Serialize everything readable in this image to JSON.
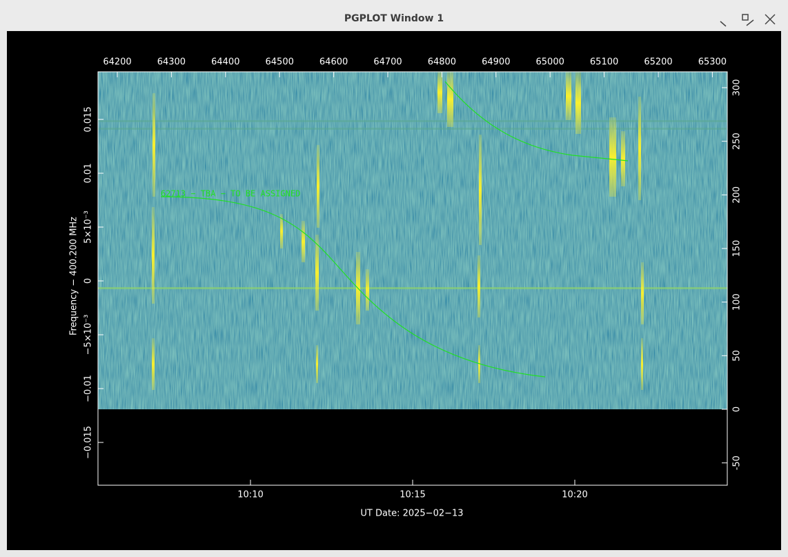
{
  "window": {
    "title": "PGPLOT Window 1"
  },
  "plot": {
    "top_ticks": [
      64200,
      64300,
      64400,
      64500,
      64600,
      64700,
      64800,
      64900,
      65000,
      65100,
      65200,
      65300
    ],
    "right_ticks": [
      300,
      250,
      200,
      150,
      100,
      50,
      0,
      -50
    ],
    "left_ticks": [
      "0.015",
      "0.01",
      "5×10⁻³",
      "0",
      "−5×10⁻³",
      "−0.01",
      "−0.015"
    ],
    "bottom_ticks": [
      "10:10",
      "10:15",
      "10:20"
    ],
    "y_label": "Frequency − 400.200 MHz",
    "x_label": "UT Date: 2025−02−13",
    "annotation": "62713 − TBA − TO BE ASSIGNED"
  }
}
